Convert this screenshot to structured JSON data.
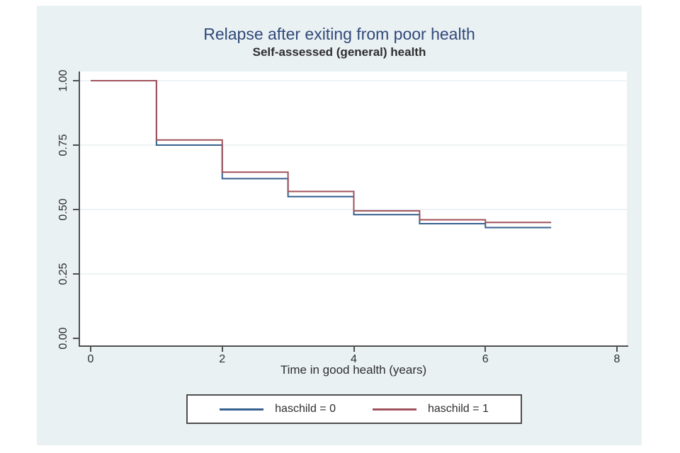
{
  "colors": {
    "region_bg": "#eaf1f3",
    "plot_bg": "#ffffff",
    "grid": "#edf3f5",
    "axis": "#4f4f4f",
    "text": "#2e2e2e",
    "title": "#31497a",
    "series_blue": "#36618e",
    "series_red": "#a0525a"
  },
  "chart_data": {
    "type": "line",
    "style": "step-survival",
    "title": "Relapse after exiting from poor health",
    "subtitle": "Self-assessed (general) health",
    "xlabel": "Time in good health (years)",
    "ylabel": "",
    "xlim": [
      0,
      8
    ],
    "ylim": [
      0,
      1
    ],
    "x_ticks": [
      0,
      2,
      4,
      6,
      8
    ],
    "y_ticks": [
      "0.00",
      "0.25",
      "0.50",
      "0.75",
      "1.00"
    ],
    "y_tick_values": [
      0,
      0.25,
      0.5,
      0.75,
      1.0
    ],
    "grid": true,
    "grid_values": [
      0.25,
      0.5,
      0.75,
      1.0
    ],
    "legend_position": "bottom",
    "step_times": [
      0,
      1,
      2,
      3,
      4,
      5,
      6
    ],
    "end_time": 7,
    "series": [
      {
        "name": "haschild = 0",
        "color": "#36618e",
        "values": [
          1.0,
          0.75,
          0.62,
          0.55,
          0.48,
          0.445,
          0.43
        ]
      },
      {
        "name": "haschild = 1",
        "color": "#a0525a",
        "values": [
          1.0,
          0.77,
          0.645,
          0.57,
          0.495,
          0.46,
          0.45
        ]
      }
    ]
  }
}
